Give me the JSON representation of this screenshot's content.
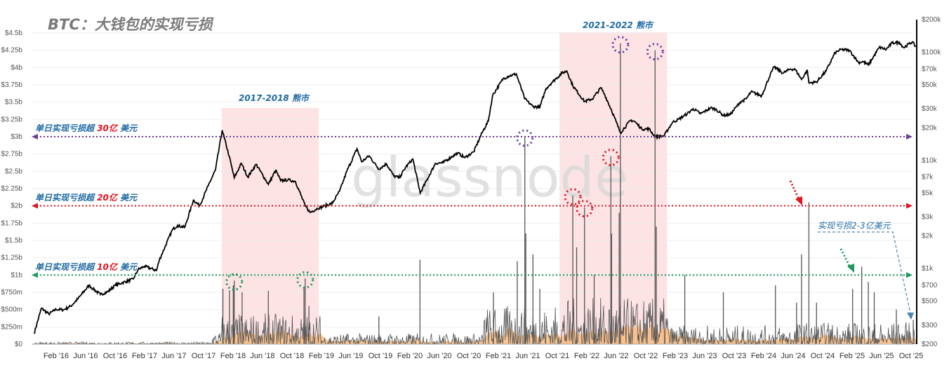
{
  "title": "BTC：大钱包的实现亏损",
  "watermark": "glassnode",
  "colors": {
    "price_line": "#000000",
    "loss_line": "#555555",
    "loss_fill": "#f8b878",
    "bear_shade": "#fde3e4",
    "purple": "#6a3d9a",
    "red": "#e0141e",
    "green": "#1a9a5a",
    "annotation_text": "#1f6aa5",
    "title": "#7a7a7a"
  },
  "annotations": {
    "bear1": "2017-2018 熊市",
    "bear2": "2021-2022 熊市",
    "line30": {
      "prefix": "单日实现亏损超 ",
      "highlight": "30亿",
      "suffix": " 美元",
      "value": 3.0,
      "color": "purple"
    },
    "line20": {
      "prefix": "单日实现亏损超 ",
      "highlight": "20亿",
      "suffix": " 美元",
      "value": 2.0,
      "color": "red"
    },
    "line10": {
      "prefix": "单日实现亏损超 ",
      "highlight": "10亿",
      "suffix": " 美元",
      "value": 1.0,
      "color": "green"
    },
    "recent": "实现亏损2-3亿美元"
  },
  "chart_data": {
    "type": "line",
    "title": "BTC：大钱包的实现亏损",
    "x_ticks": [
      "Feb '16",
      "Jun '16",
      "Oct '16",
      "Feb '17",
      "Jun '17",
      "Oct '17",
      "Feb '18",
      "Jun '18",
      "Oct '18",
      "Feb '19",
      "Jun '19",
      "Oct '19",
      "Feb '20",
      "Jun '20",
      "Oct '20",
      "Feb '21",
      "Jun '21",
      "Oct '21",
      "Feb '22",
      "Jun '22",
      "Oct '22",
      "Feb '23",
      "Jun '23",
      "Oct '23",
      "Feb '24",
      "Jun '24",
      "Oct '24",
      "Feb '25",
      "Jun '25",
      "Oct '25"
    ],
    "y_left": {
      "ticks": [
        "$0",
        "$250m",
        "$500m",
        "$750m",
        "$1b",
        "$1.25b",
        "$1.5b",
        "$1.75b",
        "$2b",
        "$2.25b",
        "$2.5b",
        "$2.75b",
        "$3b",
        "$3.25b",
        "$3.5b",
        "$3.75b",
        "$4b",
        "$4.25b",
        "$4.5b"
      ],
      "range_billion": [
        0,
        4.5
      ],
      "scale": "linear"
    },
    "y_right": {
      "ticks": [
        "$200",
        "$300",
        "$500",
        "$700",
        "$1k",
        "$2k",
        "$3k",
        "$5k",
        "$7k",
        "$10k",
        "$20k",
        "$30k",
        "$50k",
        "$70k",
        "$100k",
        "$200k"
      ],
      "tick_values": [
        200,
        300,
        500,
        700,
        1000,
        2000,
        3000,
        5000,
        7000,
        10000,
        20000,
        30000,
        50000,
        70000,
        100000,
        200000
      ],
      "range": [
        200,
        200000
      ],
      "scale": "log"
    },
    "grid": true,
    "bear_markets": [
      {
        "label": "2017-2018 熊市",
        "start": "2017-12-15",
        "end": "2019-01-20"
      },
      {
        "label": "2021-2022 熊市",
        "start": "2021-10-10",
        "end": "2022-12-28"
      }
    ],
    "series": [
      {
        "axis": "right",
        "dates": [
          "2015-11-01",
          "2015-12-01",
          "2016-01-01",
          "2016-02-01",
          "2016-03-01",
          "2016-04-01",
          "2016-05-01",
          "2016-06-15",
          "2016-07-01",
          "2016-08-01",
          "2016-09-01",
          "2016-10-01",
          "2016-11-01",
          "2016-12-15",
          "2017-01-05",
          "2017-02-01",
          "2017-03-20",
          "2017-04-01",
          "2017-05-25",
          "2017-06-15",
          "2017-07-15",
          "2017-08-20",
          "2017-09-15",
          "2017-10-20",
          "2017-11-20",
          "2017-12-17",
          "2018-01-15",
          "2018-02-06",
          "2018-03-05",
          "2018-04-01",
          "2018-05-05",
          "2018-06-25",
          "2018-07-25",
          "2018-08-15",
          "2018-09-15",
          "2018-10-15",
          "2018-11-25",
          "2018-12-15",
          "2019-01-15",
          "2019-02-15",
          "2019-03-15",
          "2019-04-15",
          "2019-05-15",
          "2019-06-26",
          "2019-07-15",
          "2019-08-15",
          "2019-09-25",
          "2019-10-26",
          "2019-11-25",
          "2019-12-18",
          "2020-01-15",
          "2020-02-13",
          "2020-03-13",
          "2020-04-15",
          "2020-05-15",
          "2020-06-15",
          "2020-07-27",
          "2020-08-15",
          "2020-09-15",
          "2020-10-21",
          "2020-11-25",
          "2020-12-20",
          "2021-01-08",
          "2021-02-21",
          "2021-03-13",
          "2021-04-14",
          "2021-05-19",
          "2021-06-22",
          "2021-07-20",
          "2021-08-15",
          "2021-09-07",
          "2021-10-20",
          "2021-11-10",
          "2021-12-04",
          "2022-01-22",
          "2022-02-24",
          "2022-03-29",
          "2022-04-15",
          "2022-05-12",
          "2022-06-18",
          "2022-07-30",
          "2022-08-15",
          "2022-09-15",
          "2022-10-15",
          "2022-11-09",
          "2022-12-15",
          "2023-01-20",
          "2023-02-15",
          "2023-03-20",
          "2023-04-14",
          "2023-05-15",
          "2023-06-25",
          "2023-07-15",
          "2023-08-18",
          "2023-09-15",
          "2023-10-25",
          "2023-11-20",
          "2023-12-10",
          "2024-01-23",
          "2024-02-28",
          "2024-03-14",
          "2024-04-20",
          "2024-05-20",
          "2024-06-10",
          "2024-07-05",
          "2024-07-29",
          "2024-08-05",
          "2024-09-06",
          "2024-10-15",
          "2024-11-22",
          "2024-12-17",
          "2025-01-20",
          "2025-02-28",
          "2025-03-15",
          "2025-04-07",
          "2025-05-22",
          "2025-06-20",
          "2025-07-14",
          "2025-08-14",
          "2025-09-01",
          "2025-10-06",
          "2025-10-20"
        ],
        "values": [
          250,
          430,
          380,
          420,
          415,
          450,
          530,
          700,
          650,
          575,
          610,
          700,
          740,
          800,
          980,
          1050,
          960,
          1200,
          2300,
          2500,
          2400,
          4300,
          3800,
          5800,
          8200,
          19000,
          11000,
          6900,
          9400,
          7000,
          9200,
          6000,
          8100,
          6500,
          6600,
          6400,
          3800,
          3300,
          3600,
          3800,
          4000,
          5200,
          8000,
          12800,
          9700,
          11000,
          8300,
          9300,
          7200,
          6900,
          8700,
          10300,
          5000,
          6900,
          9400,
          9500,
          11000,
          11700,
          10600,
          12000,
          18000,
          23000,
          40000,
          57000,
          60000,
          63000,
          37000,
          31500,
          31000,
          46000,
          52000,
          64000,
          67000,
          49000,
          35000,
          37000,
          47000,
          40000,
          29000,
          18000,
          23500,
          23000,
          19500,
          19500,
          16500,
          16800,
          22500,
          24000,
          27000,
          30000,
          27000,
          30500,
          29800,
          26000,
          26500,
          34500,
          37000,
          43000,
          39500,
          62000,
          73000,
          64000,
          70000,
          69000,
          56000,
          68000,
          52000,
          53000,
          67000,
          99000,
          106000,
          104000,
          80000,
          82000,
          76000,
          111000,
          106000,
          122000,
          123000,
          110000,
          125000,
          112000
        ]
      },
      {
        "axis": "left",
        "unit": "billion USD",
        "spike_dates": [
          "2017-12-20",
          "2018-01-17",
          "2018-02-02",
          "2018-02-06",
          "2018-03-08",
          "2018-06-25",
          "2018-11-20",
          "2018-11-25",
          "2018-12-10",
          "2019-09-25",
          "2020-03-12",
          "2021-01-11",
          "2021-04-18",
          "2021-05-19",
          "2021-05-23",
          "2021-06-22",
          "2021-07-20",
          "2021-12-04",
          "2021-12-20",
          "2022-01-22",
          "2022-03-01",
          "2022-05-09",
          "2022-05-12",
          "2022-06-18",
          "2022-06-13",
          "2022-11-09",
          "2022-11-14",
          "2023-03-10",
          "2023-08-17",
          "2024-03-19",
          "2024-06-15",
          "2024-07-05",
          "2024-08-05",
          "2024-09-06",
          "2025-02-03",
          "2025-03-10",
          "2025-04-07",
          "2025-05-01",
          "2025-08-01",
          "2025-10-10"
        ],
        "spike_values": [
          0.8,
          0.78,
          0.85,
          0.92,
          0.75,
          0.77,
          0.82,
          0.95,
          0.55,
          0.4,
          1.22,
          0.75,
          1.2,
          3.0,
          1.6,
          1.3,
          0.8,
          2.15,
          1.4,
          1.98,
          1.0,
          2.72,
          1.6,
          4.35,
          1.9,
          4.25,
          1.7,
          1.0,
          0.75,
          0.85,
          0.6,
          1.3,
          2.05,
          0.6,
          0.8,
          1.12,
          0.9,
          0.75,
          0.5,
          0.35
        ],
        "highlighted": [
          {
            "date": "2018-02-06",
            "color": "green"
          },
          {
            "date": "2018-11-25",
            "color": "green"
          },
          {
            "date": "2021-05-19",
            "color": "purple"
          },
          {
            "date": "2021-12-04",
            "color": "red"
          },
          {
            "date": "2022-01-22",
            "color": "red"
          },
          {
            "date": "2022-05-09",
            "color": "red"
          },
          {
            "date": "2022-06-18",
            "color": "purple"
          },
          {
            "date": "2022-11-09",
            "color": "purple"
          }
        ]
      }
    ]
  }
}
